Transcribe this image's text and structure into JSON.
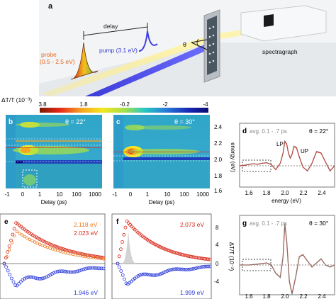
{
  "panel_a": {
    "letter": "a",
    "delay_label": "delay",
    "probe_label": "probe",
    "probe_range": "(0.5 - 2.5 eV)",
    "pump_label": "pump (3.1 eV)",
    "theta_label": "θ",
    "spectrograph_label": "spectragraph"
  },
  "colorbar": {
    "label": "ΔT/T (10⁻³)",
    "ticks": [
      "3.8",
      "1.8",
      "-0.2",
      "-2",
      "-4"
    ],
    "colors": [
      "#7a1a00",
      "#e8281a",
      "#f5a623",
      "#f5e61e",
      "#a6e04a",
      "#28c8c0",
      "#2a7ad8",
      "#1a2ab8",
      "#0a0a70"
    ]
  },
  "panel_b": {
    "letter": "b",
    "theta": "θ = 22°"
  },
  "panel_c": {
    "letter": "c",
    "theta": "θ = 30°"
  },
  "map_axes": {
    "x_ticks": [
      "-1",
      "0",
      "1",
      "10",
      "100",
      "1000"
    ],
    "x_label": "Delay (ps)",
    "y_ticks": [
      "2.4",
      "2.2",
      "2.0",
      "1.8",
      "1.6"
    ],
    "y_label": "energy (eV)"
  },
  "panel_d": {
    "letter": "d",
    "note": "avg. 0.1 - .7 ps",
    "theta": "θ = 22°",
    "lp": "LP",
    "up": "UP",
    "x_ticks": [
      "1.6",
      "1.8",
      "2.0",
      "2.2",
      "2.4"
    ],
    "x_label": "energy (eV)"
  },
  "panel_e": {
    "letter": "e",
    "legend": [
      "2.118 eV",
      "2.023 eV",
      "1.946 eV"
    ]
  },
  "panel_f": {
    "letter": "f",
    "legend": [
      "2.073 eV",
      "1.999 eV"
    ],
    "y_ticks": [
      "8",
      "4",
      "0",
      "-4"
    ],
    "y_label": "ΔT/T (10⁻³)"
  },
  "panel_g": {
    "letter": "g",
    "note": "avg. 0.1 - .7 ps",
    "theta": "θ = 30°",
    "x_ticks": [
      "1.6",
      "1.8",
      "2.0",
      "2.2",
      "2.4"
    ]
  },
  "chart_data": [
    {
      "type": "line",
      "title": "",
      "panel": "d",
      "xlabel": "energy (eV)",
      "ylabel": "",
      "xlim": [
        1.5,
        2.55
      ],
      "x": [
        1.5,
        1.55,
        1.6,
        1.65,
        1.7,
        1.75,
        1.8,
        1.85,
        1.9,
        1.95,
        1.98,
        2.0,
        2.02,
        2.04,
        2.06,
        2.08,
        2.1,
        2.13,
        2.16,
        2.2,
        2.25,
        2.3,
        2.35,
        2.4,
        2.45,
        2.5,
        2.55
      ],
      "series": [
        {
          "values": [
            0,
            0.02,
            0.05,
            0.08,
            0.06,
            0.1,
            0.12,
            0.05,
            -0.15,
            0.1,
            0.5,
            0.95,
            0.85,
            0.5,
            0.3,
            0.45,
            0.75,
            0.7,
            0.35,
            -0.05,
            -0.2,
            0.1,
            0.55,
            0.5,
            0.15,
            -0.2,
            0
          ]
        }
      ]
    },
    {
      "type": "line",
      "title": "",
      "panel": "g",
      "xlabel": "",
      "ylabel": "",
      "xlim": [
        1.5,
        2.55
      ],
      "x": [
        1.5,
        1.6,
        1.7,
        1.8,
        1.85,
        1.9,
        1.95,
        1.98,
        2.0,
        2.02,
        2.05,
        2.08,
        2.12,
        2.16,
        2.2,
        2.25,
        2.3,
        2.35,
        2.4,
        2.45,
        2.5,
        2.55
      ],
      "series": [
        {
          "values": [
            0,
            0,
            0.02,
            0.05,
            0,
            -0.2,
            -0.3,
            0.2,
            1.0,
            0.6,
            -0.4,
            -0.7,
            -0.3,
            0.2,
            0.25,
            0.1,
            -0.05,
            0.05,
            0.15,
            0.0,
            -0.05,
            0
          ]
        }
      ]
    }
  ]
}
